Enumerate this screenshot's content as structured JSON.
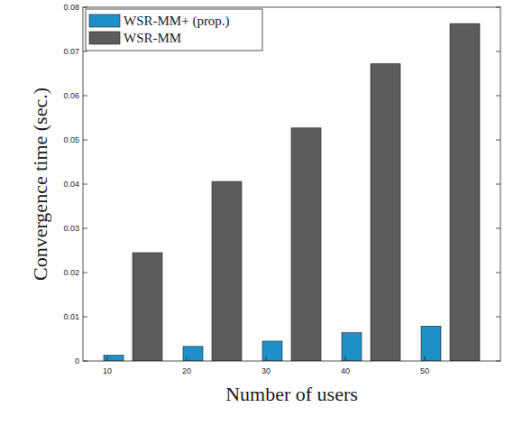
{
  "chart_data": {
    "type": "bar",
    "x_label": "Number of users",
    "y_label": "Convergence time (sec.)",
    "categories": [
      "10",
      "20",
      "30",
      "40",
      "50"
    ],
    "series": [
      {
        "name": "WSR-MM+ (prop.)",
        "color": "#1f8fc8",
        "values": [
          0.0013,
          0.0033,
          0.0045,
          0.0064,
          0.0079
        ]
      },
      {
        "name": "WSR-MM",
        "color": "#5c5c5c",
        "values": [
          0.0245,
          0.0406,
          0.0527,
          0.0672,
          0.0763
        ]
      }
    ],
    "ylim": [
      0,
      0.08
    ],
    "yticks": [
      0,
      0.01,
      0.02,
      0.03,
      0.04,
      0.05,
      0.06,
      0.07,
      0.08
    ],
    "grid": false,
    "legend": "top-left"
  }
}
